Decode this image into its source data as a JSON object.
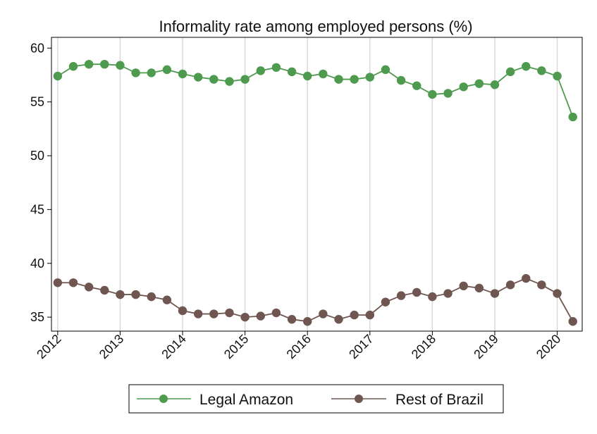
{
  "chart_data": {
    "type": "line",
    "title": "Informality rate among employed persons (%)",
    "xlabel": "",
    "ylabel": "",
    "x_tick_labels": [
      "2012",
      "2013",
      "2014",
      "2015",
      "2016",
      "2017",
      "2018",
      "2019",
      "2020"
    ],
    "y_ticks": [
      35,
      40,
      45,
      50,
      55,
      60
    ],
    "ylim": [
      33.7,
      61
    ],
    "xlim": [
      2011.9,
      2020.4
    ],
    "grid": "vertical",
    "legend_position": "bottom",
    "x": [
      2012.0,
      2012.25,
      2012.5,
      2012.75,
      2013.0,
      2013.25,
      2013.5,
      2013.75,
      2014.0,
      2014.25,
      2014.5,
      2014.75,
      2015.0,
      2015.25,
      2015.5,
      2015.75,
      2016.0,
      2016.25,
      2016.5,
      2016.75,
      2017.0,
      2017.25,
      2017.5,
      2017.75,
      2018.0,
      2018.25,
      2018.5,
      2018.75,
      2019.0,
      2019.25,
      2019.5,
      2019.75,
      2020.0,
      2020.25
    ],
    "series": [
      {
        "name": "Legal Amazon",
        "color": "#4e9a4e",
        "values": [
          57.4,
          58.3,
          58.5,
          58.5,
          58.4,
          57.7,
          57.7,
          58.0,
          57.6,
          57.3,
          57.1,
          56.9,
          57.1,
          57.9,
          58.2,
          57.8,
          57.4,
          57.6,
          57.1,
          57.1,
          57.3,
          58.0,
          57.0,
          56.5,
          55.7,
          55.8,
          56.4,
          56.7,
          56.6,
          57.8,
          58.3,
          57.9,
          57.4,
          53.6
        ]
      },
      {
        "name": "Rest of Brazil",
        "color": "#705650",
        "values": [
          38.2,
          38.2,
          37.8,
          37.5,
          37.1,
          37.1,
          36.9,
          36.6,
          35.6,
          35.3,
          35.3,
          35.4,
          35.0,
          35.1,
          35.4,
          34.8,
          34.6,
          35.3,
          34.8,
          35.2,
          35.2,
          36.4,
          37.0,
          37.3,
          36.9,
          37.2,
          37.9,
          37.7,
          37.2,
          38.0,
          38.6,
          38.0,
          37.2,
          34.6
        ]
      }
    ]
  }
}
